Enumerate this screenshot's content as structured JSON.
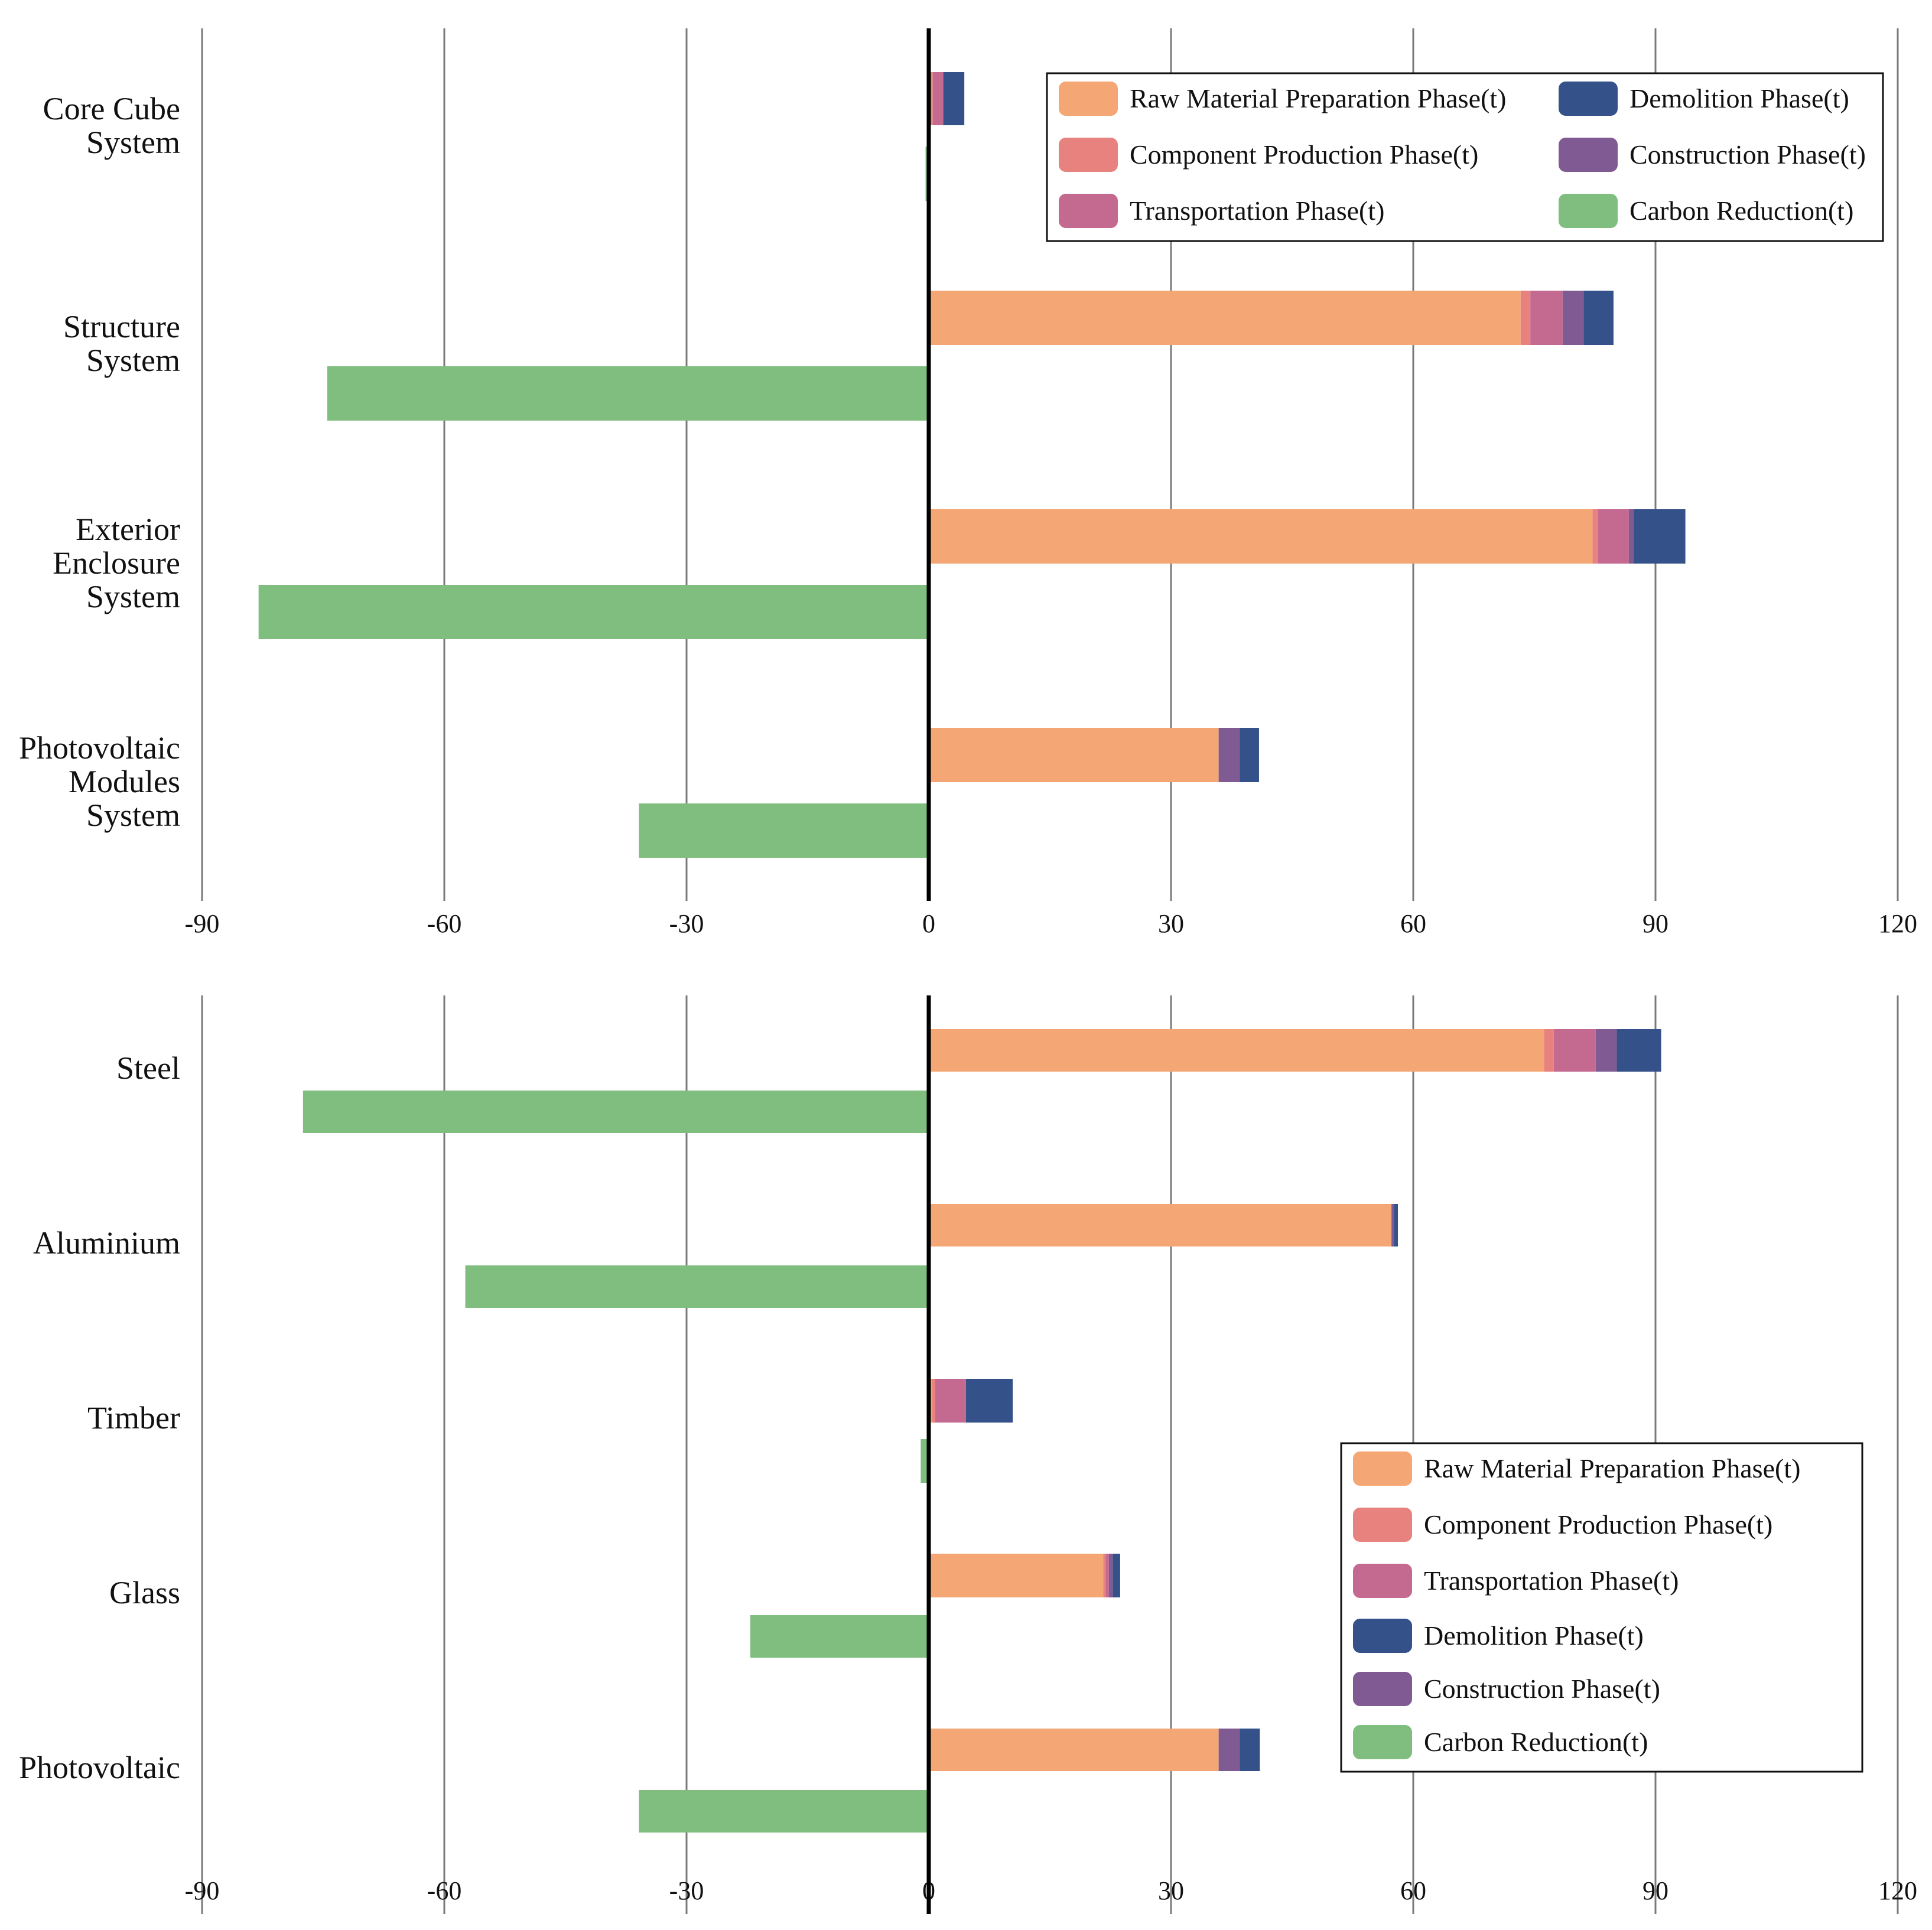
{
  "colors": {
    "raw": "#F4A774",
    "component": "#E8827E",
    "transport": "#C4698F",
    "construction": "#805A92",
    "demolition": "#34518A",
    "reduction": "#7FBE7F"
  },
  "chart_data": [
    {
      "type": "bar",
      "orientation": "horizontal",
      "stacked": true,
      "xlim": [
        -90,
        120
      ],
      "xticks": [
        "-90",
        "-60",
        "-30",
        "0",
        "30",
        "60",
        "90",
        "120"
      ],
      "grid": true,
      "legend_position": "top-right",
      "legend": [
        {
          "key": "raw",
          "label": "Raw Material Preparation Phase(t)"
        },
        {
          "key": "demolition",
          "label": "Demolition Phase(t)"
        },
        {
          "key": "component",
          "label": "Component Production Phase(t)"
        },
        {
          "key": "construction",
          "label": "Construction Phase(t)"
        },
        {
          "key": "transport",
          "label": "Transportation Phase(t)"
        },
        {
          "key": "reduction",
          "label": "Carbon Reduction(t)"
        }
      ],
      "categories": [
        {
          "lines": [
            "Core Cube",
            "System"
          ],
          "raw": 0,
          "component": 0.5,
          "transport": 1.3,
          "construction": 0,
          "demolition": 2.6,
          "reduction": -0.4
        },
        {
          "lines": [
            "Structure",
            "System"
          ],
          "raw": 73.3,
          "component": 1.2,
          "transport": 4.0,
          "construction": 2.6,
          "demolition": 3.7,
          "reduction": -74.5
        },
        {
          "lines": [
            "Exterior",
            "Enclosure",
            "System"
          ],
          "raw": 82.2,
          "component": 0.7,
          "transport": 3.8,
          "construction": 0.6,
          "demolition": 6.4,
          "reduction": -83.0
        },
        {
          "lines": [
            "Photovoltaic",
            "Modules",
            "System"
          ],
          "raw": 35.9,
          "component": 0,
          "transport": 0,
          "construction": 2.6,
          "demolition": 2.4,
          "reduction": -35.9
        }
      ]
    },
    {
      "type": "bar",
      "orientation": "horizontal",
      "stacked": true,
      "xlim": [
        -90,
        120
      ],
      "xticks": [
        "-90",
        "-60",
        "-30",
        "0",
        "30",
        "60",
        "90",
        "120"
      ],
      "grid": true,
      "legend_position": "bottom-right",
      "legend": [
        {
          "key": "raw",
          "label": "Raw Material Preparation Phase(t)"
        },
        {
          "key": "component",
          "label": "Component Production Phase(t)"
        },
        {
          "key": "transport",
          "label": "Transportation Phase(t)"
        },
        {
          "key": "demolition",
          "label": "Demolition Phase(t)"
        },
        {
          "key": "construction",
          "label": "Construction Phase(t)"
        },
        {
          "key": "reduction",
          "label": "Carbon Reduction(t)"
        }
      ],
      "categories": [
        {
          "lines": [
            "Steel"
          ],
          "raw": 76.2,
          "component": 1.2,
          "transport": 5.2,
          "construction": 2.6,
          "demolition": 5.5,
          "reduction": -77.5
        },
        {
          "lines": [
            "Aluminium"
          ],
          "raw": 57.3,
          "component": 0,
          "transport": 0,
          "construction": 0.3,
          "demolition": 0.5,
          "reduction": -57.4
        },
        {
          "lines": [
            "Timber"
          ],
          "raw": 0.4,
          "component": 0.4,
          "transport": 3.8,
          "construction": 0,
          "demolition": 5.8,
          "reduction": -1.0
        },
        {
          "lines": [
            "Glass"
          ],
          "raw": 21.6,
          "component": 0.3,
          "transport": 0.4,
          "construction": 0.5,
          "demolition": 0.9,
          "reduction": -22.1
        },
        {
          "lines": [
            "Photovoltaic"
          ],
          "raw": 35.9,
          "component": 0,
          "transport": 0,
          "construction": 2.6,
          "demolition": 2.5,
          "reduction": -35.9
        }
      ]
    }
  ]
}
